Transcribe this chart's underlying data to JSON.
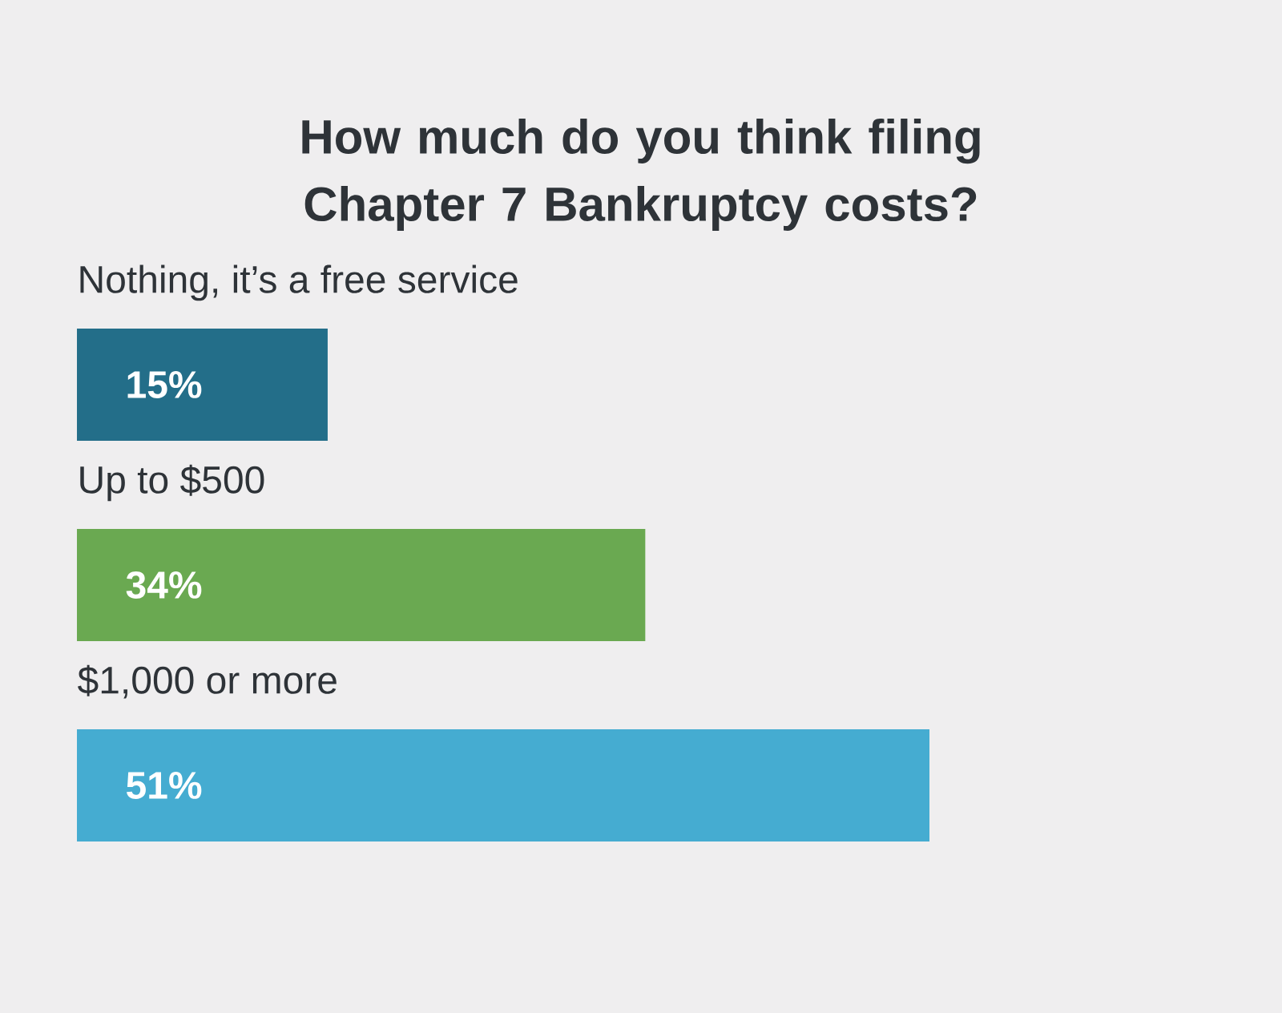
{
  "chart_data": {
    "type": "bar",
    "orientation": "horizontal",
    "title": "How much do you think filing Chapter 7 Bankruptcy costs?",
    "categories": [
      "Nothing, it’s a free service",
      "Up to $500",
      "$1,000 or more"
    ],
    "values": [
      15,
      34,
      51
    ],
    "colors": [
      "#236e89",
      "#6aa951",
      "#45acd1"
    ],
    "value_labels": [
      "15%",
      "34%",
      "51%"
    ]
  }
}
